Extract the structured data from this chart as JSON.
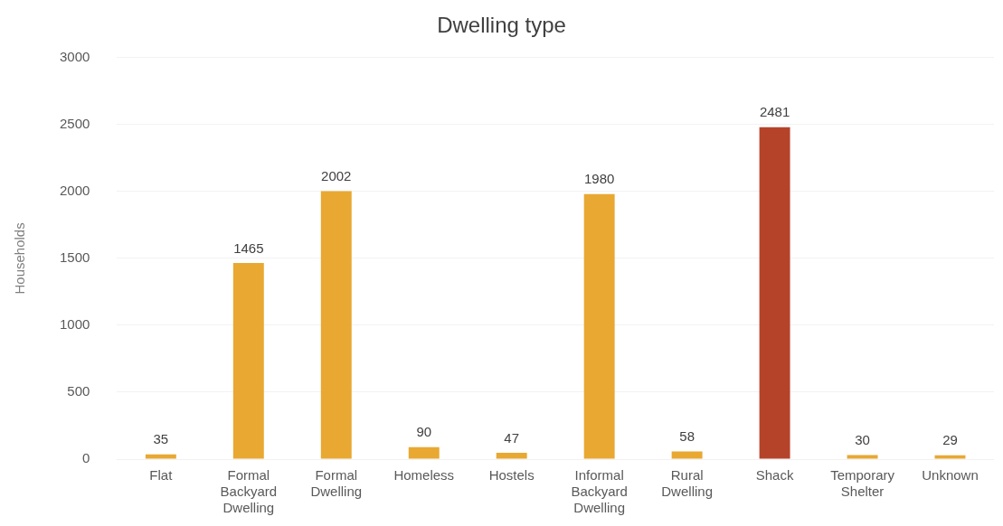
{
  "chart_data": {
    "type": "bar",
    "title": "Dwelling type",
    "ylabel": "Households",
    "categories": [
      "Flat",
      "Formal Backyard Dwelling",
      "Formal Dwelling",
      "Homeless",
      "Hostels",
      "Informal Backyard Dwelling",
      "Rural Dwelling",
      "Shack",
      "Temporary Shelter",
      "Unknown"
    ],
    "values": [
      35,
      1465,
      2002,
      90,
      47,
      1980,
      58,
      2481,
      30,
      29
    ],
    "colors": [
      "#e8a832",
      "#e8a832",
      "#e8a832",
      "#e8a832",
      "#e8a832",
      "#e8a832",
      "#e8a832",
      "#b5432a",
      "#e8a832",
      "#e8a832"
    ],
    "ylim": [
      0,
      3000
    ],
    "yticks": [
      0,
      500,
      1000,
      1500,
      2000,
      2500,
      3000
    ],
    "grid": "y",
    "data_labels": true,
    "legend": false
  }
}
